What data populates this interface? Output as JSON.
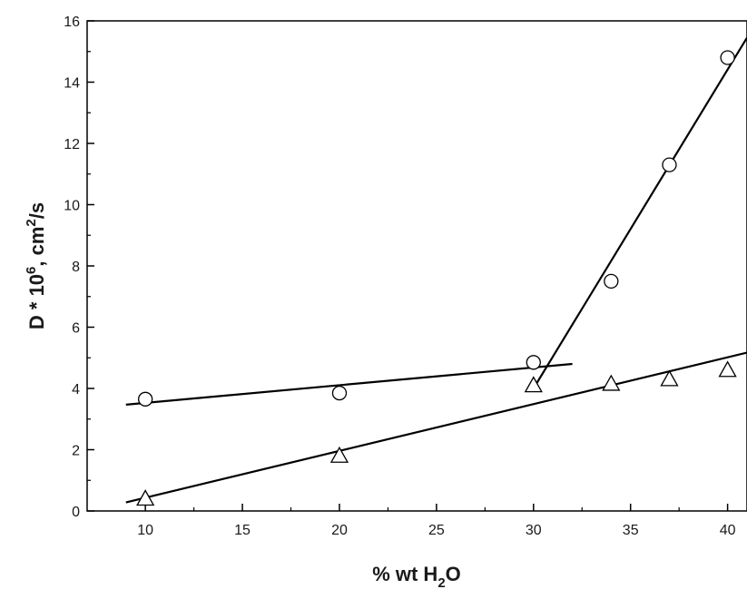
{
  "chart_data": {
    "type": "scatter",
    "title": "",
    "xlabel": {
      "prefix": "% wt H",
      "sub": "2",
      "suffix": "O"
    },
    "ylabel": {
      "prefix": "D * 10",
      "sup1": "6",
      "mid": ", cm",
      "sup2": "2",
      "suffix": "/s"
    },
    "xlim": [
      7,
      41
    ],
    "ylim": [
      0,
      16
    ],
    "xticks": [
      10,
      15,
      20,
      25,
      30,
      35,
      40
    ],
    "yticks": [
      0,
      2,
      4,
      6,
      8,
      10,
      12,
      14,
      16
    ],
    "grid": false,
    "series": [
      {
        "marker": "circle",
        "points": [
          {
            "x": 10,
            "y": 3.65
          },
          {
            "x": 20,
            "y": 3.85
          },
          {
            "x": 30,
            "y": 4.85
          },
          {
            "x": 34,
            "y": 7.5
          },
          {
            "x": 37,
            "y": 11.3
          },
          {
            "x": 40,
            "y": 14.8
          }
        ]
      },
      {
        "marker": "triangle",
        "points": [
          {
            "x": 10,
            "y": 0.4
          },
          {
            "x": 20,
            "y": 1.8
          },
          {
            "x": 30,
            "y": 4.1
          },
          {
            "x": 34,
            "y": 4.15
          },
          {
            "x": 37,
            "y": 4.3
          },
          {
            "x": 40,
            "y": 4.6
          }
        ]
      }
    ],
    "fit_lines": [
      {
        "x1": 9,
        "y1": 3.47,
        "x2": 32,
        "y2": 4.8
      },
      {
        "x1": 30,
        "y1": 4.0,
        "x2": 41,
        "y2": 15.45
      },
      {
        "x1": 9,
        "y1": 0.28,
        "x2": 41,
        "y2": 5.17
      }
    ]
  }
}
